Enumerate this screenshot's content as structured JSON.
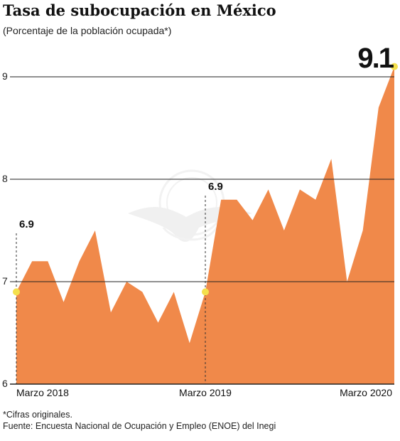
{
  "header": {
    "title": "Tasa de subocupación en México",
    "subtitle": "(Porcentaje de la población ocupada*)"
  },
  "notes": {
    "footnote": "*Cifras originales.",
    "source": "Fuente: Encuesta Nacional de Ocupación y Empleo (ENOE) del Inegi"
  },
  "colors": {
    "area": "#f0894a",
    "marker": "#f4e04d",
    "grid": "#222222"
  },
  "chart_data": {
    "type": "area",
    "title": "Tasa de subocupación en México",
    "subtitle": "(Porcentaje de la población ocupada*)",
    "ylim": [
      6,
      9.1
    ],
    "yticks": [
      6,
      7,
      8,
      9
    ],
    "xtick_labels": [
      {
        "label": "Marzo 2018",
        "index": 0
      },
      {
        "label": "Marzo 2019",
        "index": 12
      },
      {
        "label": "Marzo 2020",
        "index": 24
      }
    ],
    "values": [
      6.9,
      7.2,
      7.2,
      6.8,
      7.2,
      7.5,
      6.7,
      7.0,
      6.9,
      6.6,
      6.9,
      6.4,
      6.9,
      7.8,
      7.8,
      7.6,
      7.9,
      7.5,
      7.9,
      7.8,
      8.2,
      7.0,
      7.5,
      8.7,
      9.1
    ],
    "annotations": [
      {
        "index": 0,
        "label": "6.9"
      },
      {
        "index": 12,
        "label": "6.9"
      },
      {
        "index": 24,
        "label": "9.1"
      }
    ],
    "grid": true
  }
}
